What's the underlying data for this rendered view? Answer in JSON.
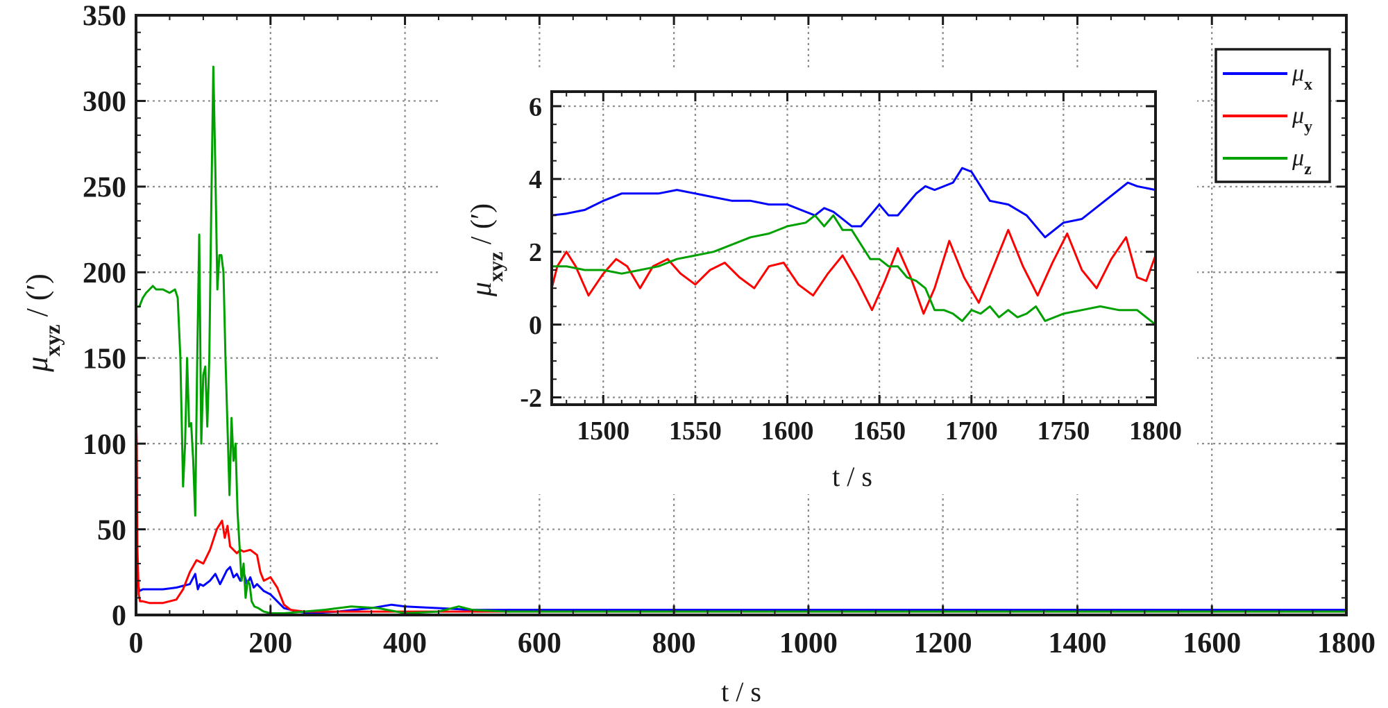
{
  "chart_data": [
    {
      "type": "line",
      "xlabel": "t / s",
      "ylabel": {
        "main": "μ",
        "sub": "xyz",
        "unit": " / (′)"
      },
      "xlim": [
        0,
        1800
      ],
      "ylim": [
        0,
        350
      ],
      "xticks": [
        0,
        200,
        400,
        600,
        800,
        1000,
        1200,
        1400,
        1600,
        1800
      ],
      "yticks": [
        0,
        50,
        100,
        150,
        200,
        250,
        300,
        350
      ],
      "grid": true,
      "legend_position": "top-right",
      "series": [
        {
          "name": "μx",
          "label_main": "μ",
          "label_sub": "x",
          "color": "#0000ff",
          "x": [
            0,
            2,
            5,
            10,
            20,
            40,
            60,
            70,
            80,
            88,
            92,
            95,
            100,
            110,
            118,
            125,
            130,
            135,
            140,
            145,
            150,
            155,
            160,
            165,
            170,
            175,
            180,
            190,
            200,
            210,
            220,
            240,
            260,
            300,
            350,
            380,
            400,
            450,
            500,
            520,
            600,
            800,
            1000,
            1200,
            1400,
            1600,
            1700,
            1800
          ],
          "y": [
            35,
            20,
            14,
            15,
            15,
            15,
            16,
            17,
            18,
            24,
            15,
            18,
            17,
            20,
            24,
            18,
            22,
            26,
            28,
            22,
            24,
            20,
            25,
            18,
            22,
            16,
            18,
            14,
            12,
            8,
            4,
            2,
            1,
            2,
            4,
            6,
            5,
            4,
            3,
            3,
            3,
            3,
            3,
            3,
            3,
            3,
            3,
            3
          ]
        },
        {
          "name": "μy",
          "label_main": "μ",
          "label_sub": "y",
          "color": "#ff0000",
          "x": [
            0,
            1,
            2,
            4,
            6,
            10,
            20,
            40,
            60,
            70,
            80,
            90,
            100,
            110,
            120,
            128,
            132,
            136,
            140,
            145,
            150,
            155,
            160,
            170,
            180,
            185,
            190,
            200,
            210,
            220,
            230,
            250,
            270,
            300,
            400,
            500,
            600,
            800,
            1000,
            1200,
            1400,
            1600,
            1800
          ],
          "y": [
            120,
            100,
            40,
            12,
            8,
            8,
            7,
            7,
            9,
            15,
            25,
            32,
            30,
            38,
            50,
            55,
            45,
            52,
            40,
            38,
            36,
            38,
            37,
            38,
            35,
            25,
            20,
            22,
            16,
            6,
            3,
            2,
            2,
            2,
            2,
            2,
            2,
            2,
            2,
            2,
            2,
            2,
            2
          ]
        },
        {
          "name": "μz",
          "label_main": "μ",
          "label_sub": "z",
          "color": "#00a000",
          "x": [
            0,
            5,
            10,
            15,
            20,
            25,
            30,
            40,
            50,
            58,
            62,
            66,
            70,
            73,
            76,
            79,
            82,
            85,
            88,
            91,
            94,
            97,
            100,
            103,
            106,
            109,
            112,
            115,
            118,
            121,
            124,
            127,
            130,
            133,
            136,
            139,
            142,
            145,
            148,
            151,
            154,
            157,
            160,
            163,
            166,
            169,
            172,
            176,
            182,
            190,
            200,
            220,
            250,
            280,
            320,
            360,
            400,
            450,
            480,
            500,
            550,
            600,
            800,
            1000,
            1200,
            1400,
            1600,
            1800
          ],
          "y": [
            180,
            180,
            185,
            188,
            190,
            192,
            190,
            190,
            188,
            190,
            185,
            150,
            75,
            100,
            150,
            110,
            112,
            90,
            58,
            150,
            222,
            100,
            140,
            145,
            110,
            150,
            240,
            320,
            260,
            190,
            210,
            210,
            200,
            150,
            110,
            70,
            115,
            90,
            100,
            60,
            40,
            20,
            30,
            10,
            20,
            18,
            8,
            5,
            4,
            2,
            1,
            1,
            2,
            3,
            5,
            4,
            1,
            2,
            5,
            3,
            2,
            2,
            2,
            2,
            2,
            2,
            2,
            2
          ]
        }
      ]
    },
    {
      "type": "line",
      "xlabel": "t / s",
      "ylabel": {
        "main": "μ",
        "sub": "xyz",
        "unit": " / (′)"
      },
      "xlim": [
        1472,
        1800
      ],
      "ylim": [
        -2.2,
        6.4
      ],
      "xticks": [
        1500,
        1550,
        1600,
        1650,
        1700,
        1750,
        1800
      ],
      "yticks": [
        -2,
        0,
        2,
        4,
        6
      ],
      "grid": true,
      "series": [
        {
          "name": "μx",
          "color": "#0000ff",
          "x": [
            1472,
            1480,
            1490,
            1500,
            1510,
            1520,
            1530,
            1540,
            1550,
            1560,
            1570,
            1580,
            1590,
            1600,
            1610,
            1615,
            1620,
            1625,
            1630,
            1635,
            1640,
            1645,
            1650,
            1655,
            1660,
            1665,
            1670,
            1675,
            1680,
            1690,
            1695,
            1700,
            1705,
            1710,
            1720,
            1730,
            1740,
            1750,
            1760,
            1770,
            1780,
            1785,
            1790,
            1800
          ],
          "y": [
            3.0,
            3.05,
            3.15,
            3.4,
            3.6,
            3.6,
            3.6,
            3.7,
            3.6,
            3.5,
            3.4,
            3.4,
            3.3,
            3.3,
            3.1,
            3.0,
            3.2,
            3.1,
            2.9,
            2.7,
            2.7,
            3.0,
            3.3,
            3.0,
            3.0,
            3.3,
            3.6,
            3.8,
            3.7,
            3.9,
            4.3,
            4.2,
            3.8,
            3.4,
            3.3,
            3.0,
            2.4,
            2.8,
            2.9,
            3.3,
            3.7,
            3.9,
            3.8,
            3.7
          ]
        },
        {
          "name": "μy",
          "color": "#ff0000",
          "x": [
            1472,
            1475,
            1480,
            1485,
            1492,
            1500,
            1507,
            1513,
            1520,
            1527,
            1535,
            1542,
            1550,
            1558,
            1566,
            1574,
            1582,
            1590,
            1598,
            1606,
            1614,
            1622,
            1630,
            1638,
            1646,
            1653,
            1660,
            1667,
            1674,
            1680,
            1688,
            1696,
            1704,
            1712,
            1720,
            1728,
            1736,
            1744,
            1752,
            1760,
            1768,
            1776,
            1784,
            1790,
            1795,
            1800
          ],
          "y": [
            1.0,
            1.6,
            2.0,
            1.6,
            0.8,
            1.4,
            1.8,
            1.6,
            1.0,
            1.6,
            1.8,
            1.4,
            1.1,
            1.5,
            1.7,
            1.3,
            1.0,
            1.6,
            1.7,
            1.1,
            0.8,
            1.4,
            1.9,
            1.2,
            0.4,
            1.2,
            2.1,
            1.3,
            0.3,
            1.0,
            2.3,
            1.3,
            0.6,
            1.6,
            2.6,
            1.6,
            0.8,
            1.7,
            2.5,
            1.5,
            1.0,
            1.8,
            2.4,
            1.3,
            1.2,
            1.9
          ]
        },
        {
          "name": "μz",
          "color": "#00a000",
          "x": [
            1472,
            1480,
            1490,
            1500,
            1510,
            1520,
            1530,
            1540,
            1550,
            1560,
            1570,
            1580,
            1590,
            1600,
            1610,
            1615,
            1620,
            1625,
            1630,
            1635,
            1640,
            1645,
            1650,
            1655,
            1660,
            1665,
            1670,
            1675,
            1680,
            1685,
            1690,
            1695,
            1700,
            1705,
            1710,
            1715,
            1720,
            1725,
            1730,
            1735,
            1740,
            1750,
            1760,
            1770,
            1780,
            1790,
            1800
          ],
          "y": [
            1.6,
            1.6,
            1.5,
            1.5,
            1.4,
            1.5,
            1.6,
            1.8,
            1.9,
            2.0,
            2.2,
            2.4,
            2.5,
            2.7,
            2.8,
            3.0,
            2.7,
            3.0,
            2.6,
            2.6,
            2.2,
            1.8,
            1.8,
            1.6,
            1.6,
            1.3,
            1.2,
            1.0,
            0.4,
            0.4,
            0.3,
            0.1,
            0.4,
            0.3,
            0.5,
            0.2,
            0.4,
            0.2,
            0.3,
            0.5,
            0.1,
            0.3,
            0.4,
            0.5,
            0.4,
            0.4,
            0.0
          ]
        }
      ]
    }
  ]
}
